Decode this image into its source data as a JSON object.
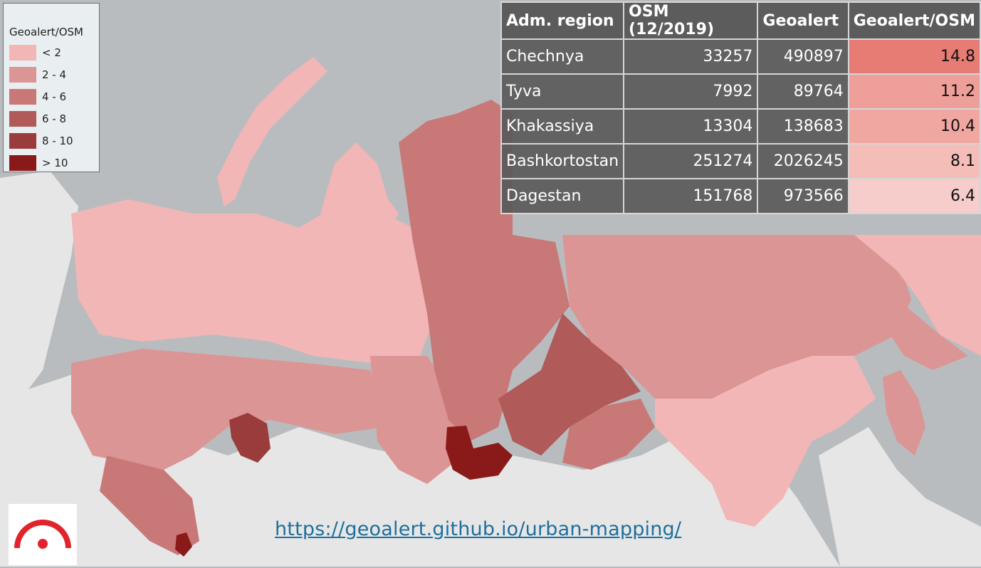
{
  "legend": {
    "title": "Geoalert/OSM",
    "classes": [
      {
        "label": "< 2",
        "color": "#f2b6b6"
      },
      {
        "label": "2 - 4",
        "color": "#dc9595"
      },
      {
        "label": "4 - 6",
        "color": "#c97878"
      },
      {
        "label": "6 - 8",
        "color": "#b05a5a"
      },
      {
        "label": "8 - 10",
        "color": "#9b3c3c"
      },
      {
        "label": "> 10",
        "color": "#8a1a1a"
      }
    ]
  },
  "table": {
    "headers": [
      "Adm. region",
      "OSM (12/2019)",
      "Geoalert",
      "Geoalert/OSM"
    ],
    "rows": [
      {
        "region": "Chechnya",
        "osm": "33257",
        "geoalert": "490897",
        "ratio": "14.8",
        "ratio_color": "#e67c73"
      },
      {
        "region": "Tyva",
        "osm": "7992",
        "geoalert": "89764",
        "ratio": "11.2",
        "ratio_color": "#ef9f99"
      },
      {
        "region": "Khakassiya",
        "osm": "13304",
        "geoalert": "138683",
        "ratio": "10.4",
        "ratio_color": "#f1a7a1"
      },
      {
        "region": "Bashkortostan",
        "osm": "251274",
        "geoalert": "2026245",
        "ratio": "8.1",
        "ratio_color": "#f4bdb8"
      },
      {
        "region": "Dagestan",
        "osm": "151768",
        "geoalert": "973566",
        "ratio": "6.4",
        "ratio_color": "#f6cdca"
      }
    ]
  },
  "url": "https://geoalert.github.io/urban-mapping/",
  "colors": {
    "sea": "#b9bcbe",
    "land_outside": "#e9e9e9",
    "logo_red": "#e1232b"
  }
}
